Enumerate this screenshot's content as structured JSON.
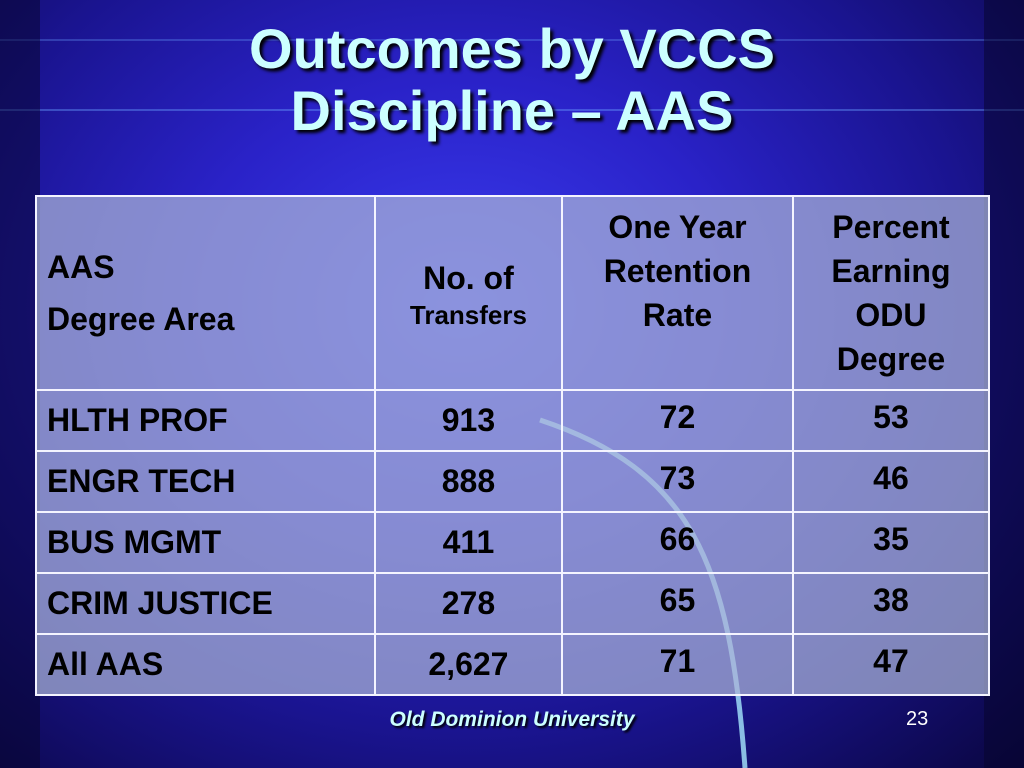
{
  "title": [
    "Outcomes by VCCS",
    "Discipline – AAS"
  ],
  "table": {
    "header": [
      [
        "AAS",
        "Degree Area"
      ],
      [
        "No. of",
        "Transfers"
      ],
      [
        "One Year",
        "Retention",
        "Rate"
      ],
      [
        "Percent",
        "Earning",
        "ODU",
        "Degree"
      ]
    ],
    "rows": [
      [
        "HLTH PROF",
        913,
        72,
        53
      ],
      [
        "ENGR TECH",
        888,
        73,
        46
      ],
      [
        "BUS MGMT",
        411,
        66,
        35
      ],
      [
        "CRIM JUSTICE",
        278,
        65,
        38
      ],
      [
        "All AAS",
        "2,627",
        71,
        47
      ]
    ]
  },
  "footer": {
    "organization": "Old Dominion University",
    "page_number": "23"
  }
}
